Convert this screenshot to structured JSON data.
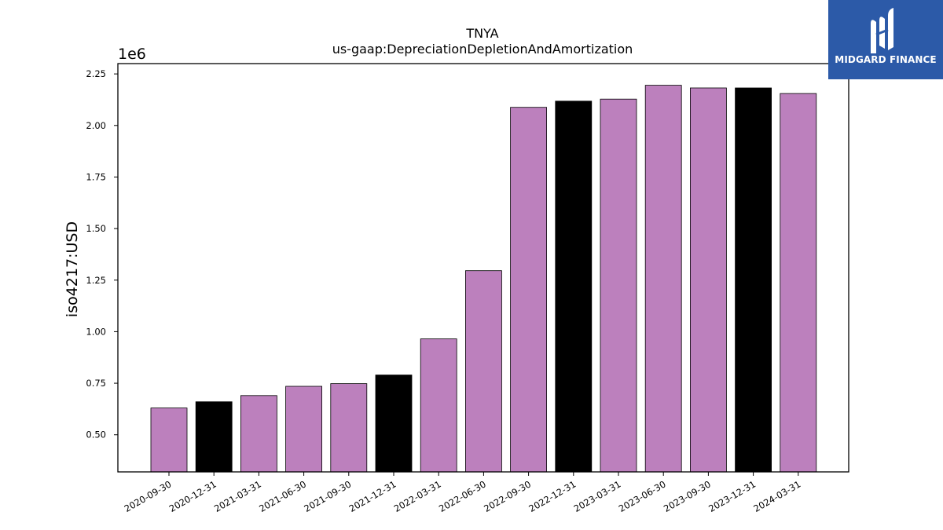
{
  "chart_data": {
    "type": "bar",
    "title": "TNYA",
    "subtitle": "us-gaap:DepreciationDepletionAndAmortization",
    "ylabel": "iso4217:USD",
    "xlabel": "",
    "y_multiplier_label": "1e6",
    "ylim": [
      0.32,
      2.3
    ],
    "yticks": [
      0.5,
      0.75,
      1.0,
      1.25,
      1.5,
      1.75,
      2.0,
      2.25
    ],
    "ytick_labels": [
      "0.50",
      "0.75",
      "1.00",
      "1.25",
      "1.50",
      "1.75",
      "2.00",
      "2.25"
    ],
    "grid": false,
    "categories": [
      "2020-09-30",
      "2020-12-31",
      "2021-03-31",
      "2021-06-30",
      "2021-09-30",
      "2021-12-31",
      "2022-03-31",
      "2022-06-30",
      "2022-09-30",
      "2022-12-31",
      "2023-03-31",
      "2023-06-30",
      "2023-09-30",
      "2023-12-31",
      "2024-03-31"
    ],
    "values": [
      0.63,
      0.66,
      0.69,
      0.735,
      0.748,
      0.79,
      0.965,
      1.296,
      2.088,
      2.118,
      2.128,
      2.195,
      2.182,
      2.182,
      2.155
    ],
    "colors": {
      "quarter": "#bc80bd",
      "year_end": "#000000"
    },
    "bar_color_keys": [
      "quarter",
      "year_end",
      "quarter",
      "quarter",
      "quarter",
      "year_end",
      "quarter",
      "quarter",
      "quarter",
      "year_end",
      "quarter",
      "quarter",
      "quarter",
      "year_end",
      "quarter"
    ]
  },
  "logo": {
    "text": "MIDGARD FINANCE",
    "icon": "midgard-logo-icon",
    "background": "#2c5aa8"
  }
}
